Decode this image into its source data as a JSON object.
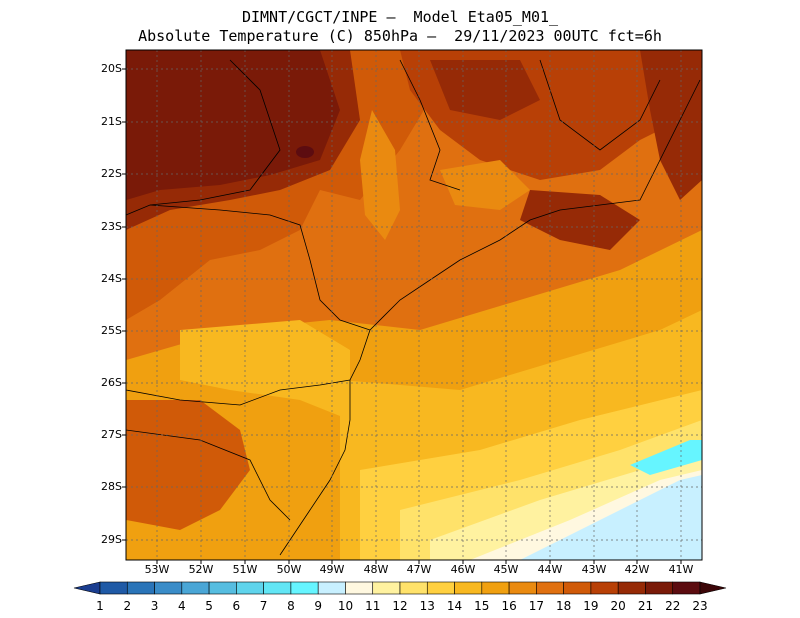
{
  "title": {
    "line1": "DIMNT/CGCT/INPE –  Model Eta05_M01_",
    "line2": "Absolute Temperature (C) 850hPa –  29/11/2023 00UTC fct=6h"
  },
  "map": {
    "region": "Southern / Southeastern Brazil",
    "lat_labels": [
      "20S",
      "21S",
      "22S",
      "23S",
      "24S",
      "25S",
      "26S",
      "27S",
      "28S",
      "29S"
    ],
    "lon_labels": [
      "53W",
      "52W",
      "51W",
      "50W",
      "49W",
      "48W",
      "47W",
      "46W",
      "45W",
      "44W",
      "43W",
      "42W",
      "41W"
    ]
  },
  "colorbar": {
    "labels": [
      "1",
      "2",
      "3",
      "4",
      "5",
      "6",
      "7",
      "8",
      "9",
      "10",
      "11",
      "12",
      "13",
      "14",
      "15",
      "16",
      "17",
      "18",
      "19",
      "20",
      "21",
      "22",
      "23"
    ],
    "colors": [
      "#1a3d8f",
      "#1f5aa6",
      "#2a74b8",
      "#3a8cc8",
      "#4aa6d6",
      "#56bde0",
      "#5fd4ec",
      "#62e6f5",
      "#66f5ff",
      "#c8f0ff",
      "#fff8e0",
      "#fff2a0",
      "#ffe26a",
      "#ffd040",
      "#f8b820",
      "#f0a010",
      "#ea8a10",
      "#e07010",
      "#d05a08",
      "#b84006",
      "#962a06",
      "#7a1a08",
      "#5c0c10",
      "#3c0608"
    ]
  }
}
